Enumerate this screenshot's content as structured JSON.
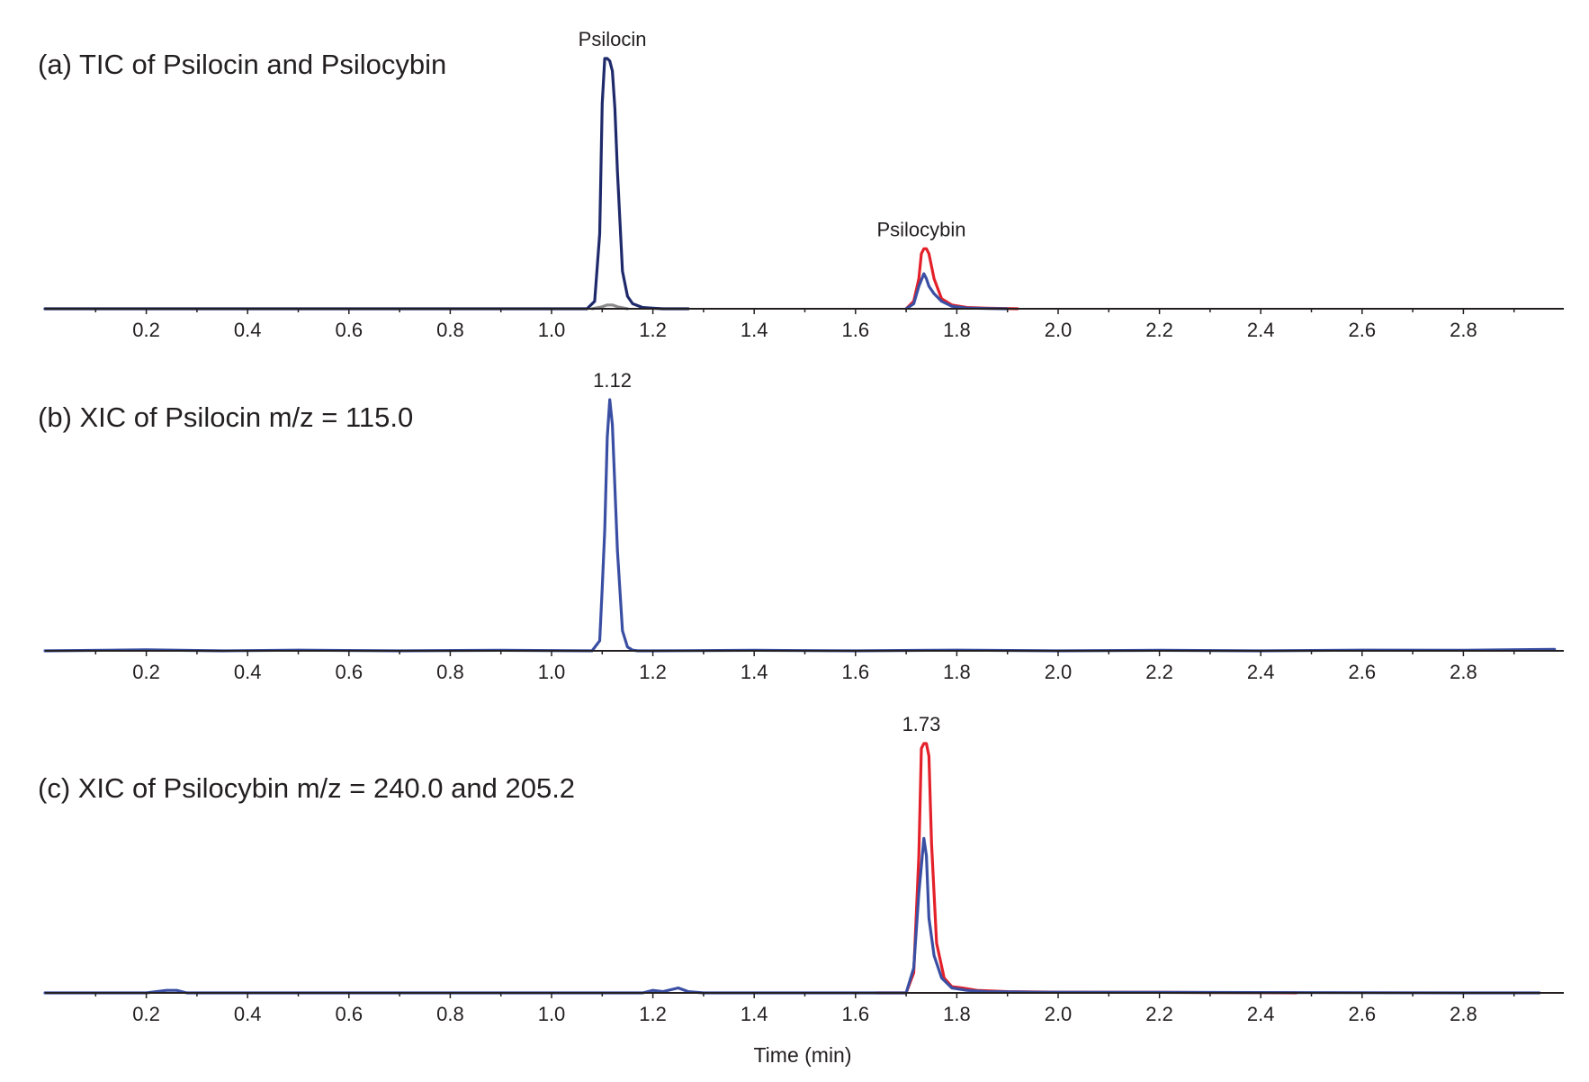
{
  "colors": {
    "navy": "#1f2a6b",
    "blue": "#3a4fa3",
    "red": "#e4212a",
    "gray": "#8a8a8a"
  },
  "chart_data": [
    {
      "type": "line",
      "title": "(a) TIC of Psilocin and Psilocybin",
      "xlabel": "",
      "ylabel": "",
      "xlim": [
        0,
        2.98
      ],
      "ylim": [
        0,
        100
      ],
      "x_ticks": [
        "0.2",
        "0.4",
        "0.6",
        "0.8",
        "1.0",
        "1.2",
        "1.4",
        "1.6",
        "1.8",
        "2.0",
        "2.2",
        "2.4",
        "2.6",
        "2.8"
      ],
      "annotations": [
        {
          "text": "Psilocin",
          "x": 1.12,
          "y": 100
        },
        {
          "text": "Psilocybin",
          "x": 1.73,
          "y": 24
        }
      ],
      "series": [
        {
          "color": "navy",
          "x": [
            0.0,
            1.07,
            1.085,
            1.095,
            1.1,
            1.105,
            1.11,
            1.115,
            1.12,
            1.125,
            1.13,
            1.14,
            1.15,
            1.16,
            1.18,
            1.2,
            1.22,
            1.27
          ],
          "y": [
            0,
            0,
            3,
            30,
            82,
            100,
            100,
            99,
            95,
            80,
            55,
            15,
            5,
            2,
            0.5,
            0.2,
            0,
            0
          ]
        },
        {
          "color": "gray",
          "x": [
            1.08,
            1.1,
            1.11,
            1.12,
            1.13,
            1.15
          ],
          "y": [
            0,
            0.8,
            1.5,
            1.5,
            0.8,
            0
          ]
        },
        {
          "color": "red",
          "x": [
            1.7,
            1.715,
            1.725,
            1.73,
            1.735,
            1.74,
            1.745,
            1.755,
            1.77,
            1.79,
            1.82,
            1.86,
            1.92
          ],
          "y": [
            0,
            3,
            12,
            22,
            24,
            24,
            22,
            12,
            4,
            1.5,
            0.5,
            0.2,
            0
          ]
        },
        {
          "color": "blue",
          "x": [
            1.7,
            1.715,
            1.725,
            1.735,
            1.74,
            1.745,
            1.755,
            1.77,
            1.79,
            1.82,
            1.86,
            1.9
          ],
          "y": [
            0,
            2,
            9,
            14,
            12,
            9,
            6,
            3,
            1,
            0.3,
            0.1,
            0
          ]
        }
      ]
    },
    {
      "type": "line",
      "title": "(b) XIC of Psilocin m/z = 115.0",
      "xlabel": "",
      "ylabel": "",
      "xlim": [
        0,
        2.98
      ],
      "ylim": [
        0,
        100
      ],
      "x_ticks": [
        "0.2",
        "0.4",
        "0.6",
        "0.8",
        "1.0",
        "1.2",
        "1.4",
        "1.6",
        "1.8",
        "2.0",
        "2.2",
        "2.4",
        "2.6",
        "2.8"
      ],
      "annotations": [
        {
          "text": "1.12",
          "x": 1.12,
          "y": 100
        }
      ],
      "series": [
        {
          "color": "blue",
          "x": [
            0.0,
            0.2,
            0.35,
            0.5,
            0.7,
            0.9,
            1.08,
            1.095,
            1.1,
            1.105,
            1.11,
            1.115,
            1.12,
            1.13,
            1.14,
            1.15,
            1.16,
            1.17,
            1.2,
            1.4,
            1.6,
            1.8,
            2.0,
            2.2,
            2.4,
            2.6,
            2.8,
            2.98
          ],
          "y": [
            0,
            0.4,
            0,
            0.3,
            0,
            0.2,
            0,
            4,
            25,
            48,
            85,
            100,
            90,
            40,
            8,
            1.5,
            0.3,
            0,
            0,
            0.2,
            0,
            0.3,
            0,
            0.2,
            0,
            0.3,
            0.2,
            0.6
          ]
        }
      ]
    },
    {
      "type": "line",
      "title": "(c) XIC of Psilocybin m/z = 240.0 and 205.2",
      "xlabel": "Time (min)",
      "ylabel": "",
      "xlim": [
        0,
        2.98
      ],
      "ylim": [
        0,
        100
      ],
      "x_ticks": [
        "0.2",
        "0.4",
        "0.6",
        "0.8",
        "1.0",
        "1.2",
        "1.4",
        "1.6",
        "1.8",
        "2.0",
        "2.2",
        "2.4",
        "2.6",
        "2.8"
      ],
      "annotations": [
        {
          "text": "1.73",
          "x": 1.73,
          "y": 100
        }
      ],
      "series": [
        {
          "color": "red",
          "x": [
            1.64,
            1.7,
            1.715,
            1.725,
            1.73,
            1.735,
            1.74,
            1.745,
            1.75,
            1.76,
            1.775,
            1.79,
            1.81,
            1.84,
            1.9,
            2.0,
            2.2,
            2.47
          ],
          "y": [
            0,
            0,
            8,
            55,
            98,
            100,
            100,
            95,
            60,
            20,
            6,
            2.5,
            2,
            1,
            0.5,
            0.3,
            0.2,
            0
          ]
        },
        {
          "color": "blue",
          "x": [
            0.0,
            0.2,
            0.24,
            0.26,
            0.28,
            0.32,
            0.6,
            1.0,
            1.18,
            1.2,
            1.22,
            1.25,
            1.27,
            1.3,
            1.5,
            1.7,
            1.715,
            1.725,
            1.735,
            1.74,
            1.745,
            1.755,
            1.77,
            1.79,
            1.82,
            1.86,
            1.95,
            2.2,
            2.5,
            2.8,
            2.95
          ],
          "y": [
            0,
            0,
            1,
            1,
            0,
            0,
            0,
            0,
            0,
            1,
            0.5,
            2,
            0.5,
            0,
            0,
            0,
            10,
            40,
            62,
            55,
            30,
            15,
            6,
            2,
            1,
            0.5,
            0.3,
            0.2,
            0.1,
            0,
            0
          ]
        }
      ]
    }
  ]
}
